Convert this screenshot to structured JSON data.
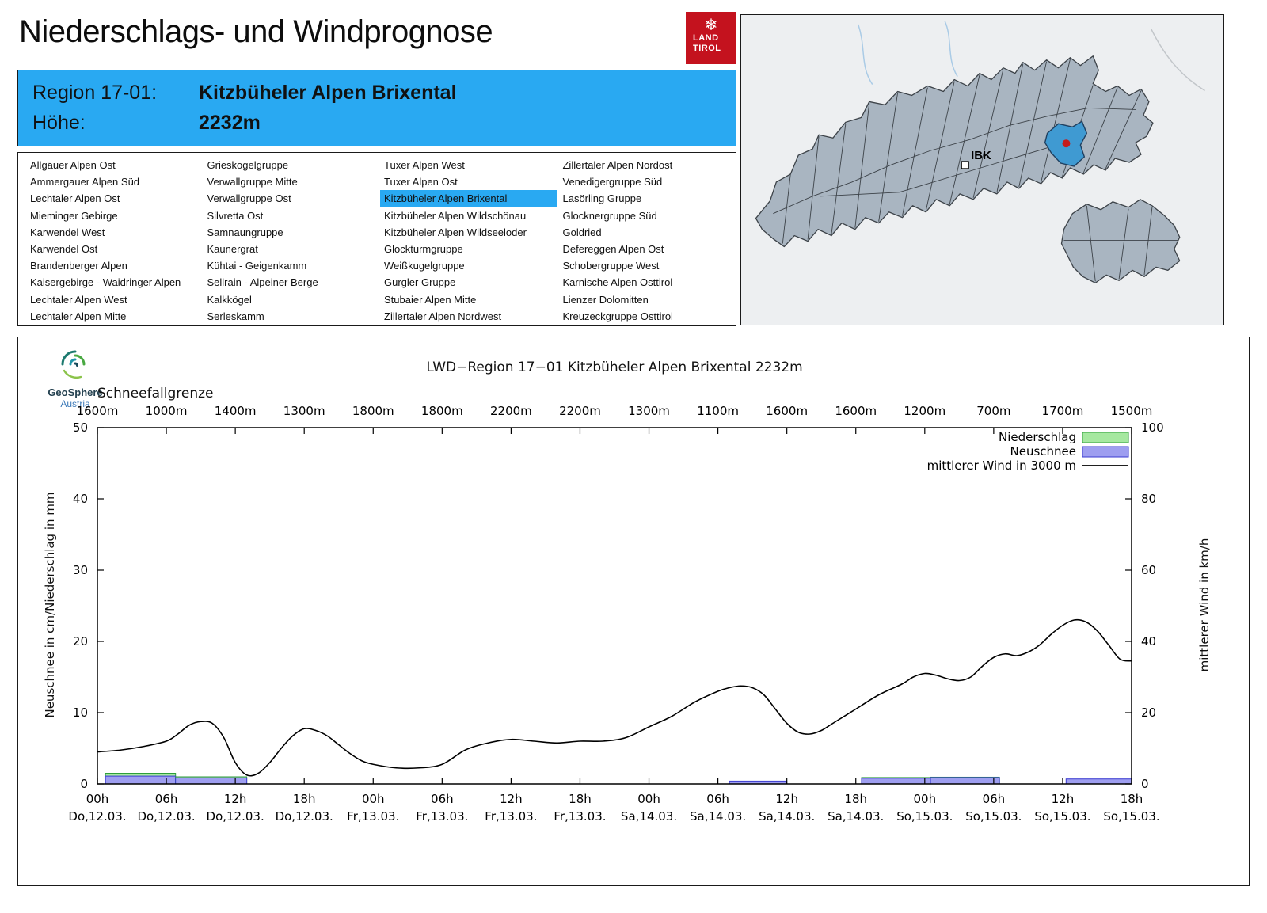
{
  "page": {
    "title": "Niederschlags- und Windprognose"
  },
  "land_logo": {
    "line1": "LAND",
    "line2": "TIROL",
    "color": "#c4121e",
    "snowflake": "❄"
  },
  "geosphere": {
    "name": "GeoSphere",
    "sub": "Austria"
  },
  "region_header": {
    "region_label": "Region 17-01:",
    "region_name": "Kitzbüheler Alpen Brixental",
    "altitude_label": "Höhe:",
    "altitude_value": "2232m",
    "bg_color": "#29a9f2"
  },
  "map": {
    "city_label": "IBK",
    "highlight_color": "#3f9ad2",
    "marker_color": "#c61b1b"
  },
  "region_list": {
    "selected": "Kitzbüheler Alpen Brixental",
    "selected_bg": "#29a9f2",
    "columns": [
      [
        "Allgäuer Alpen Ost",
        "Ammergauer Alpen Süd",
        "Lechtaler Alpen Ost",
        "Mieminger Gebirge",
        "Karwendel West",
        "Karwendel Ost",
        "Brandenberger Alpen",
        "Kaisergebirge - Waidringer Alpen",
        "Lechtaler Alpen West",
        "Lechtaler Alpen Mitte"
      ],
      [
        "Grieskogelgruppe",
        "Verwallgruppe Mitte",
        "Verwallgruppe Ost",
        "Silvretta Ost",
        "Samnaungruppe",
        "Kaunergrat",
        "Kühtai - Geigenkamm",
        "Sellrain - Alpeiner Berge",
        "Kalkkögel",
        "Serleskamm"
      ],
      [
        "Tuxer Alpen West",
        "Tuxer Alpen Ost",
        "Kitzbüheler Alpen Brixental",
        "Kitzbüheler Alpen Wildschönau",
        "Kitzbüheler Alpen Wildseeloder",
        "Glockturmgruppe",
        "Weißkugelgruppe",
        "Gurgler Gruppe",
        "Stubaier Alpen Mitte",
        "Zillertaler Alpen Nordwest"
      ],
      [
        "Zillertaler Alpen Nordost",
        "Venedigergruppe Süd",
        "Lasörling Gruppe",
        "Glocknergruppe Süd",
        "Goldried",
        "Defereggen Alpen Ost",
        "Schobergruppe West",
        "Karnische Alpen Osttirol",
        "Lienzer Dolomitten",
        "Kreuzeckgruppe Osttirol"
      ]
    ]
  },
  "chart_data": {
    "type": "line",
    "title": "LWD−Region 17−01 Kitzbüheler Alpen Brixental 2232m",
    "snowline": {
      "label": "Schneefallgrenze",
      "values": [
        "1600m",
        "1000m",
        "1400m",
        "1300m",
        "1800m",
        "1800m",
        "2200m",
        "2200m",
        "1300m",
        "1100m",
        "1600m",
        "1600m",
        "1200m",
        "700m",
        "1700m",
        "1500m"
      ]
    },
    "left_axis": {
      "label": "Neuschnee in cm/Niederschlag in mm",
      "min": 0,
      "max": 50,
      "ticks": [
        0,
        10,
        20,
        30,
        40,
        50
      ]
    },
    "right_axis": {
      "label": "mittlerer Wind in km/h",
      "min": 0,
      "max": 100,
      "ticks": [
        0,
        20,
        40,
        60,
        80,
        100
      ]
    },
    "x_hours_span": 90,
    "x_ticks": [
      {
        "hour": "00h",
        "date": "Do,12.03."
      },
      {
        "hour": "06h",
        "date": "Do,12.03."
      },
      {
        "hour": "12h",
        "date": "Do,12.03."
      },
      {
        "hour": "18h",
        "date": "Do,12.03."
      },
      {
        "hour": "00h",
        "date": "Fr,13.03."
      },
      {
        "hour": "06h",
        "date": "Fr,13.03."
      },
      {
        "hour": "12h",
        "date": "Fr,13.03."
      },
      {
        "hour": "18h",
        "date": "Fr,13.03."
      },
      {
        "hour": "00h",
        "date": "Sa,14.03."
      },
      {
        "hour": "06h",
        "date": "Sa,14.03."
      },
      {
        "hour": "12h",
        "date": "Sa,14.03."
      },
      {
        "hour": "18h",
        "date": "Sa,14.03."
      },
      {
        "hour": "00h",
        "date": "So,15.03."
      },
      {
        "hour": "06h",
        "date": "So,15.03."
      },
      {
        "hour": "12h",
        "date": "So,15.03."
      },
      {
        "hour": "18h",
        "date": "So,15.03."
      }
    ],
    "legend": [
      {
        "label": "Niederschlag",
        "type": "box",
        "fill": "#a6e8a0",
        "stroke": "#2e9e3a"
      },
      {
        "label": "Neuschnee",
        "type": "box",
        "fill": "#9e9ef0",
        "stroke": "#3b3bd1"
      },
      {
        "label": "mittlerer Wind in 3000 m",
        "type": "line",
        "stroke": "#000000"
      }
    ],
    "wind_series": {
      "name": "mittlerer Wind in 3000 m",
      "unit": "km/h",
      "hours": [
        0,
        2,
        4,
        6,
        7,
        8,
        9,
        10,
        11,
        12,
        13,
        14,
        15,
        16,
        17,
        18,
        19,
        20,
        21,
        22,
        23,
        24,
        26,
        28,
        30,
        32,
        34,
        36,
        38,
        40,
        42,
        44,
        46,
        48,
        50,
        52,
        54,
        55,
        56,
        57,
        58,
        59,
        60,
        61,
        62,
        63,
        64,
        66,
        68,
        70,
        71,
        72,
        73,
        74,
        75,
        76,
        77,
        78,
        79,
        80,
        81,
        82,
        83,
        84,
        85,
        86,
        87,
        88,
        89,
        90
      ],
      "values_kmh": [
        9,
        9.5,
        10.5,
        12,
        14,
        16.5,
        17.5,
        17,
        13,
        6,
        2.5,
        3,
        6,
        10,
        13.5,
        15.5,
        15,
        13.5,
        11,
        8.5,
        6.5,
        5.5,
        4.5,
        4.5,
        5.5,
        9.5,
        11.5,
        12.5,
        12,
        11.5,
        12,
        12,
        13,
        16,
        19,
        23,
        26,
        27,
        27.5,
        27,
        25,
        21,
        17,
        14.5,
        14,
        15,
        17,
        21,
        25,
        28,
        30,
        31,
        30.5,
        29.5,
        29,
        30,
        33,
        35.5,
        36.5,
        36,
        37,
        39,
        42,
        44.5,
        46,
        45.5,
        43,
        39,
        35,
        34.5
      ]
    },
    "precip_bars": [
      {
        "start_hour": 0.7,
        "end_hour": 6.8,
        "niederschlag_mm": 1.5,
        "neuschnee_cm": 1.1
      },
      {
        "start_hour": 6.8,
        "end_hour": 13,
        "niederschlag_mm": 1.0,
        "neuschnee_cm": 0.85
      },
      {
        "start_hour": 55,
        "end_hour": 60,
        "niederschlag_mm": 0,
        "neuschnee_cm": 0.4
      },
      {
        "start_hour": 66.5,
        "end_hour": 72.5,
        "niederschlag_mm": 0.9,
        "neuschnee_cm": 0.8
      },
      {
        "start_hour": 72.5,
        "end_hour": 78.5,
        "niederschlag_mm": 0.95,
        "neuschnee_cm": 0.9
      },
      {
        "start_hour": 84.3,
        "end_hour": 90,
        "niederschlag_mm": 0,
        "neuschnee_cm": 0.7
      }
    ]
  }
}
